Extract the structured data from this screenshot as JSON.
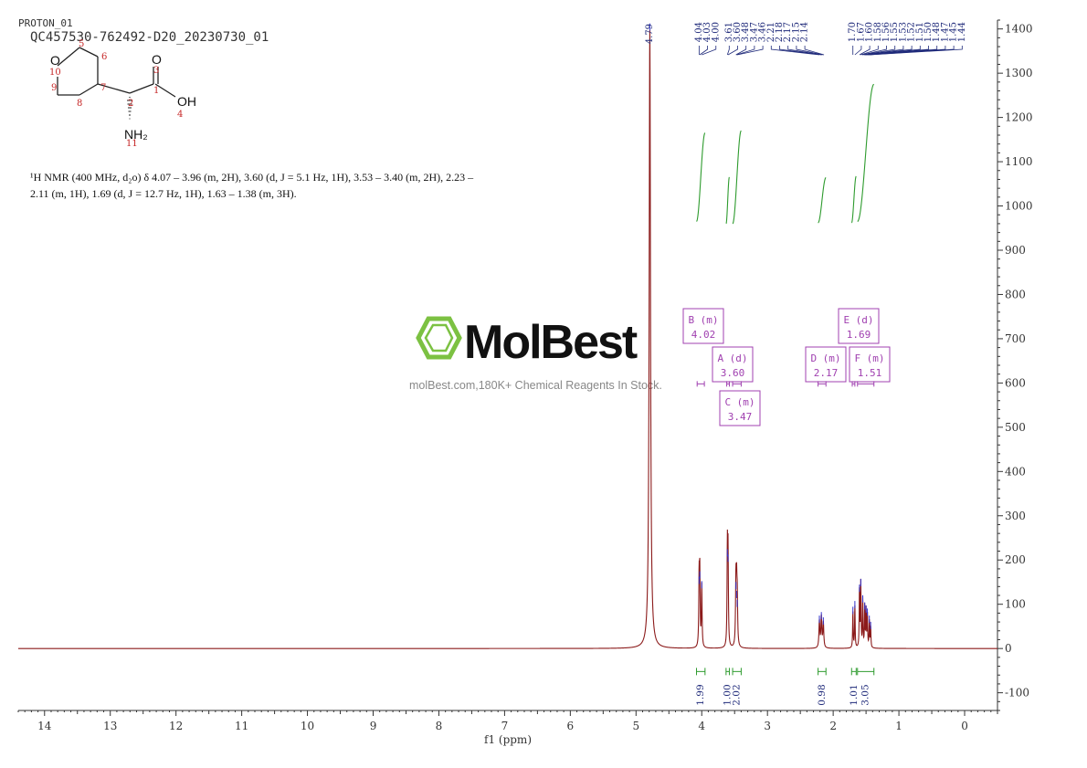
{
  "header": {
    "experiment": "PROTON_01",
    "sample": "QC457530-762492-D20_20230730_01"
  },
  "nmr_text": {
    "line1": "¹H NMR (400 MHz, d₂o) δ 4.07 – 3.96 (m, 2H), 3.60 (d, J = 5.1 Hz, 1H), 3.53 – 3.40 (m, 2H), 2.23 –",
    "line2": "2.11 (m, 1H), 1.69 (d, J = 12.7 Hz, 1H), 1.63 – 1.38 (m, 3H)."
  },
  "structure": {
    "atoms": {
      "O": "O",
      "O3": "O",
      "OH": "OH",
      "NH2": "NH₂"
    },
    "numbers": [
      "5",
      "6",
      "10",
      "3",
      "9",
      "7",
      "1",
      "2",
      "8",
      "4",
      "11"
    ]
  },
  "watermark": {
    "brand": "MolBest",
    "tagline": "molBest.com,180K+ Chemical Reagents In Stock."
  },
  "colors": {
    "spectrum": "#8b1a1a",
    "integral": "#2e9b2e",
    "peak_label": "#1f2a7a",
    "multiplet": "#a040b0",
    "logo": "#7cc142"
  },
  "chart_data": {
    "type": "line",
    "xlabel": "f1 (ppm)",
    "ylabel": "",
    "xlim": [
      14.4,
      -0.5
    ],
    "ylim": [
      -140,
      1420
    ],
    "x_ticks": [
      14,
      13,
      12,
      11,
      10,
      9,
      8,
      7,
      6,
      5,
      4,
      3,
      2,
      1,
      0
    ],
    "y_ticks": [
      1400,
      1300,
      1200,
      1100,
      1000,
      900,
      800,
      700,
      600,
      500,
      400,
      300,
      200,
      100,
      0,
      -100
    ],
    "peaks": [
      {
        "ppm": 4.79,
        "height": 1400,
        "width": 0.012
      },
      {
        "ppm": 4.04,
        "height": 150,
        "width": 0.006
      },
      {
        "ppm": 4.03,
        "height": 162,
        "width": 0.006
      },
      {
        "ppm": 4.0,
        "height": 140,
        "width": 0.006
      },
      {
        "ppm": 3.61,
        "height": 212,
        "width": 0.006
      },
      {
        "ppm": 3.6,
        "height": 200,
        "width": 0.006
      },
      {
        "ppm": 3.48,
        "height": 138,
        "width": 0.007
      },
      {
        "ppm": 3.47,
        "height": 118,
        "width": 0.007
      },
      {
        "ppm": 3.46,
        "height": 98,
        "width": 0.007
      },
      {
        "ppm": 2.21,
        "height": 62,
        "width": 0.008
      },
      {
        "ppm": 2.18,
        "height": 70,
        "width": 0.008
      },
      {
        "ppm": 2.15,
        "height": 58,
        "width": 0.008
      },
      {
        "ppm": 1.7,
        "height": 82,
        "width": 0.005
      },
      {
        "ppm": 1.67,
        "height": 95,
        "width": 0.005
      },
      {
        "ppm": 1.6,
        "height": 132,
        "width": 0.005
      },
      {
        "ppm": 1.58,
        "height": 145,
        "width": 0.005
      },
      {
        "ppm": 1.55,
        "height": 108,
        "width": 0.005
      },
      {
        "ppm": 1.52,
        "height": 92,
        "width": 0.005
      },
      {
        "ppm": 1.5,
        "height": 85,
        "width": 0.005
      },
      {
        "ppm": 1.48,
        "height": 78,
        "width": 0.005
      },
      {
        "ppm": 1.45,
        "height": 62,
        "width": 0.005
      },
      {
        "ppm": 1.43,
        "height": 48,
        "width": 0.005
      }
    ],
    "peak_labels_top": [
      "4.79"
    ],
    "peak_label_groups": [
      {
        "labels": [
          "4.04",
          "4.03",
          "4.00"
        ],
        "ppm": [
          4.04,
          4.03,
          4.0
        ]
      },
      {
        "labels": [
          "3.61",
          "3.60",
          "3.48",
          "3.47"
        ],
        "ppm": [
          3.61,
          3.6,
          3.48,
          3.47
        ]
      },
      {
        "labels": [
          "3.46",
          "2.21",
          "2.18",
          "2.17",
          "2.15",
          "2.14"
        ],
        "ppm": [
          3.46,
          2.21,
          2.18,
          2.17,
          2.15,
          2.14
        ]
      },
      {
        "labels": [
          "1.70",
          "1.67",
          "1.60",
          "1.58",
          "1.56",
          "1.55",
          "1.53",
          "1.52",
          "1.51",
          "1.50",
          "1.48",
          "1.47",
          "1.45",
          "1.44"
        ],
        "ppm": [
          1.7,
          1.67,
          1.6,
          1.58,
          1.56,
          1.55,
          1.53,
          1.52,
          1.51,
          1.5,
          1.48,
          1.47,
          1.45,
          1.44
        ]
      }
    ],
    "integrals": [
      {
        "from": 4.08,
        "to": 3.95,
        "base": 965,
        "rise": 200,
        "value": "1.99"
      },
      {
        "from": 3.63,
        "to": 3.58,
        "base": 960,
        "rise": 105,
        "value": "1.00"
      },
      {
        "from": 3.53,
        "to": 3.4,
        "base": 960,
        "rise": 210,
        "value": "2.02"
      },
      {
        "from": 2.23,
        "to": 2.11,
        "base": 962,
        "rise": 102,
        "value": "0.98"
      },
      {
        "from": 1.72,
        "to": 1.65,
        "base": 962,
        "rise": 105,
        "value": "1.01"
      },
      {
        "from": 1.63,
        "to": 1.38,
        "base": 965,
        "rise": 310,
        "value": "3.05"
      }
    ],
    "multiplets": [
      {
        "letter": "B",
        "type": "m",
        "shift": "4.02",
        "range": [
          4.07,
          3.96
        ]
      },
      {
        "letter": "A",
        "type": "d",
        "shift": "3.60",
        "range": [
          3.62,
          3.58
        ]
      },
      {
        "letter": "C",
        "type": "m",
        "shift": "3.47",
        "range": [
          3.53,
          3.4
        ]
      },
      {
        "letter": "D",
        "type": "m",
        "shift": "2.17",
        "range": [
          2.23,
          2.11
        ]
      },
      {
        "letter": "E",
        "type": "d",
        "shift": "1.69",
        "range": [
          1.71,
          1.67
        ]
      },
      {
        "letter": "F",
        "type": "m",
        "shift": "1.51",
        "range": [
          1.63,
          1.38
        ]
      }
    ]
  }
}
